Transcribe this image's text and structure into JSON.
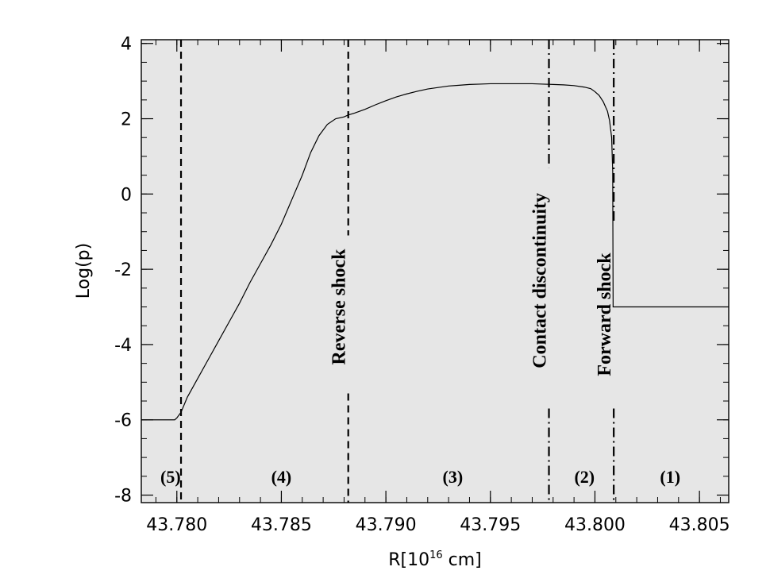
{
  "chart_data": {
    "type": "line",
    "xlabel": "R[10",
    "xlabel_sup": "16",
    "xlabel_tail": " cm]",
    "ylabel": "Log(p)",
    "xlim": [
      43.7783,
      43.8064
    ],
    "ylim": [
      -8.2,
      4.1
    ],
    "grid": false,
    "background": "#e6e6e6",
    "x_ticks": [
      43.78,
      43.785,
      43.79,
      43.795,
      43.8,
      43.805
    ],
    "x_tick_labels": [
      "43.780",
      "43.785",
      "43.790",
      "43.795",
      "43.800",
      "43.805"
    ],
    "x_minor_step": 0.001,
    "y_ticks": [
      -8,
      -6,
      -4,
      -2,
      0,
      2,
      4
    ],
    "y_tick_labels": [
      "-8",
      "-6",
      "-4",
      "-2",
      "0",
      "2",
      "4"
    ],
    "y_minor_step": 0.5,
    "series": [
      {
        "x": [
          43.7783,
          43.7799,
          43.78,
          43.7802,
          43.7805,
          43.781,
          43.7815,
          43.782,
          43.7825,
          43.783,
          43.7835,
          43.784,
          43.7845,
          43.785,
          43.7855,
          43.786,
          43.7864,
          43.7868,
          43.7872,
          43.7876,
          43.788,
          43.7882,
          43.7885,
          43.789,
          43.7895,
          43.79,
          43.7905,
          43.791,
          43.7915,
          43.792,
          43.7925,
          43.793,
          43.7935,
          43.794,
          43.7945,
          43.795,
          43.7955,
          43.796,
          43.7965,
          43.797,
          43.7975,
          43.798,
          43.7985,
          43.799,
          43.7995,
          43.7998,
          43.8,
          43.8002,
          43.8004,
          43.8006,
          43.8007,
          43.8008,
          43.80085,
          43.80087,
          43.8009,
          43.8064
        ],
        "y": [
          -6.0,
          -6.0,
          -5.95,
          -5.8,
          -5.4,
          -4.9,
          -4.4,
          -3.9,
          -3.4,
          -2.9,
          -2.35,
          -1.85,
          -1.35,
          -0.8,
          -0.15,
          0.5,
          1.1,
          1.55,
          1.85,
          2.0,
          2.05,
          2.1,
          2.15,
          2.25,
          2.37,
          2.48,
          2.58,
          2.66,
          2.73,
          2.79,
          2.83,
          2.87,
          2.89,
          2.91,
          2.92,
          2.93,
          2.93,
          2.93,
          2.93,
          2.93,
          2.92,
          2.91,
          2.9,
          2.88,
          2.84,
          2.8,
          2.72,
          2.62,
          2.45,
          2.2,
          1.95,
          1.5,
          0.6,
          -3.0,
          -3.0,
          -3.0
        ]
      }
    ],
    "vlines": [
      {
        "x": 43.7802,
        "style": "dashed",
        "y_from": -8.2,
        "y_to": 4.1
      },
      {
        "x": 43.7882,
        "style": "dashed",
        "y_from": -1.1,
        "y_to": 4.1
      },
      {
        "x": 43.7882,
        "style": "dashed",
        "y_from": -8.2,
        "y_to": -5.3
      },
      {
        "x": 43.7978,
        "style": "dashdot",
        "y_from": 0.7,
        "y_to": 4.1
      },
      {
        "x": 43.7978,
        "style": "dashdot",
        "y_from": -8.2,
        "y_to": -5.7
      },
      {
        "x": 43.8009,
        "style": "dashdot",
        "y_from": -0.8,
        "y_to": 4.1
      },
      {
        "x": 43.8009,
        "style": "dashdot",
        "y_from": -8.2,
        "y_to": -5.7
      }
    ],
    "annotations": [
      {
        "text": "Reverse shock",
        "x": 43.7882,
        "y": -3.0
      },
      {
        "text": "Contact discontinuity",
        "x": 43.7978,
        "y": -2.3
      },
      {
        "text": "Forward shock",
        "x": 43.8009,
        "y": -3.2
      }
    ],
    "regions": [
      {
        "text": "(5)",
        "x": 43.7797,
        "y": -7.5
      },
      {
        "text": "(4)",
        "x": 43.785,
        "y": -7.5
      },
      {
        "text": "(3)",
        "x": 43.7932,
        "y": -7.5
      },
      {
        "text": "(2)",
        "x": 43.7995,
        "y": -7.5
      },
      {
        "text": "(1)",
        "x": 43.8036,
        "y": -7.5
      }
    ]
  }
}
